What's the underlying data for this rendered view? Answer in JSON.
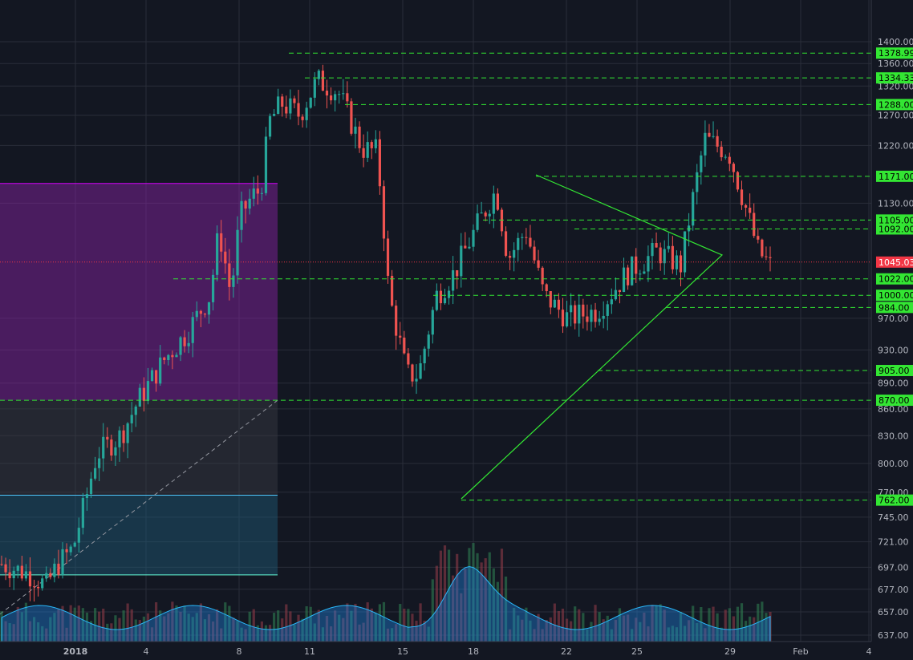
{
  "chart_data": {
    "type": "candlestick",
    "title": "",
    "ylim": [
      637,
      1415
    ],
    "y_scale": "log",
    "grid": true,
    "y_ticks": [
      1400,
      1360,
      1320,
      1270,
      1220,
      1130,
      970,
      930,
      890,
      860,
      830,
      800,
      770,
      745,
      721,
      697,
      677,
      657,
      637
    ],
    "x_ticks": [
      {
        "label": "2018",
        "bold": true
      },
      {
        "label": "4"
      },
      {
        "label": "8"
      },
      {
        "label": "11"
      },
      {
        "label": "15"
      },
      {
        "label": "18"
      },
      {
        "label": "22"
      },
      {
        "label": "25"
      },
      {
        "label": "29"
      },
      {
        "label": "Feb"
      },
      {
        "label": "4"
      }
    ],
    "axis_extra_top_label": "1400.00",
    "level_lines": [
      {
        "value": 1378.99,
        "label": "1378.99"
      },
      {
        "value": 1334.33,
        "label": "1334.33"
      },
      {
        "value": 1288.0,
        "label": "1288.00"
      },
      {
        "value": 1171.0,
        "label": "1171.00"
      },
      {
        "value": 1105.0,
        "label": "1105.00"
      },
      {
        "value": 1092.0,
        "label": "1092.00"
      },
      {
        "value": 1022.0,
        "label": "1022.00"
      },
      {
        "value": 1000.0,
        "label": "1000.00"
      },
      {
        "value": 984.0,
        "label": "984.00"
      },
      {
        "value": 905.0,
        "label": "905.00"
      },
      {
        "value": 870.0,
        "label": "870.00"
      },
      {
        "value": 762.0,
        "label": "762.00"
      }
    ],
    "last_price": {
      "value": 1045.03,
      "label": "1045.03"
    },
    "zones": [
      {
        "name": "upper-zone",
        "from": 870,
        "to": 1160,
        "color": "#8e24aa"
      },
      {
        "name": "middle-zone",
        "from": 767,
        "to": 870,
        "color": "#3a3c44"
      },
      {
        "name": "lower-zone",
        "from": 690,
        "to": 767,
        "color": "#1e5d7a"
      }
    ],
    "colors": {
      "up": "#26a69a",
      "down": "#ef5350",
      "level": "#33e633",
      "last": "#f23645",
      "grid": "#2a2e39"
    }
  }
}
